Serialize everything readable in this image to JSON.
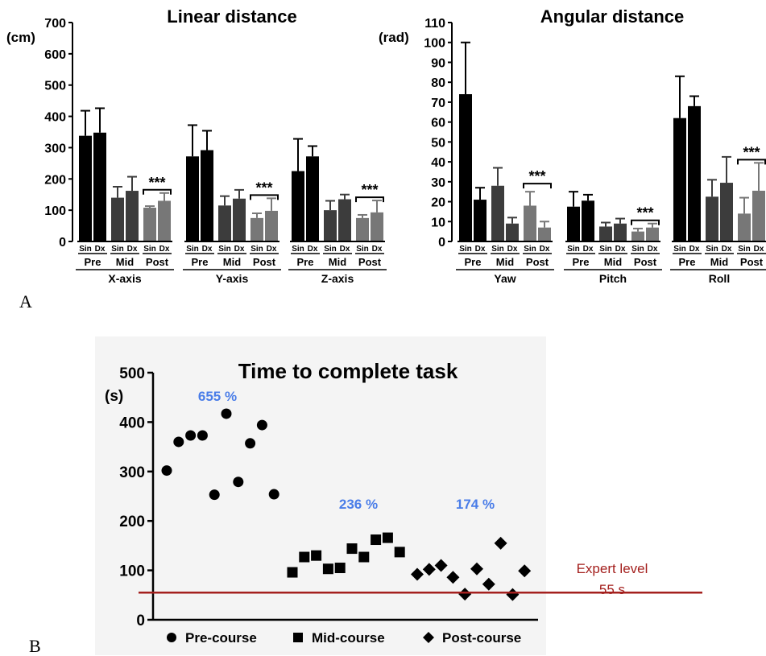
{
  "panel_a_label": "A",
  "panel_b_label": "B",
  "chart_data": [
    {
      "type": "bar",
      "title": "Linear distance",
      "ylabel": "(cm)",
      "ylim": [
        0,
        700
      ],
      "yticks": [
        0,
        100,
        200,
        300,
        400,
        500,
        600,
        700
      ],
      "side_labels": [
        "Sin",
        "Dx"
      ],
      "phases": [
        "Pre",
        "Mid",
        "Post"
      ],
      "groups": [
        {
          "name": "X-axis",
          "values": [
            338,
            348,
            140,
            162,
            108,
            130
          ],
          "errors": [
            80,
            78,
            35,
            45,
            5,
            25
          ],
          "significance": "***"
        },
        {
          "name": "Y-axis",
          "values": [
            272,
            292,
            115,
            137,
            75,
            98
          ],
          "errors": [
            100,
            62,
            30,
            28,
            15,
            40
          ],
          "significance": "***"
        },
        {
          "name": "Z-axis",
          "values": [
            225,
            272,
            100,
            135,
            75,
            93
          ],
          "errors": [
            103,
            33,
            30,
            15,
            10,
            38
          ],
          "significance": "***"
        }
      ],
      "bar_colors": [
        "#000000",
        "#000000",
        "#3c3c3c",
        "#3c3c3c",
        "#777777",
        "#777777"
      ]
    },
    {
      "type": "bar",
      "title": "Angular distance",
      "ylabel": "(rad)",
      "ylim": [
        0,
        110
      ],
      "yticks": [
        0,
        10,
        20,
        30,
        40,
        50,
        60,
        70,
        80,
        90,
        100,
        110
      ],
      "side_labels": [
        "Sin",
        "Dx"
      ],
      "phases": [
        "Pre",
        "Mid",
        "Post"
      ],
      "groups": [
        {
          "name": "Yaw",
          "values": [
            74,
            21,
            28,
            9,
            18,
            7
          ],
          "errors": [
            26,
            6,
            9,
            3,
            7,
            3
          ],
          "significance": "***"
        },
        {
          "name": "Pitch",
          "values": [
            17.5,
            20.5,
            7.5,
            9,
            5,
            7
          ],
          "errors": [
            7.5,
            3,
            2,
            2.5,
            1.5,
            2
          ],
          "significance": "***"
        },
        {
          "name": "Roll",
          "values": [
            62,
            68,
            22.5,
            29.5,
            14,
            25.5
          ],
          "errors": [
            21,
            5,
            8.5,
            13,
            8,
            14
          ],
          "significance": "***"
        }
      ],
      "bar_colors": [
        "#000000",
        "#000000",
        "#3c3c3c",
        "#3c3c3c",
        "#777777",
        "#777777"
      ]
    },
    {
      "type": "scatter",
      "title": "Time to complete task",
      "ylabel": "(s)",
      "ylim": [
        0,
        500
      ],
      "yticks": [
        0,
        100,
        200,
        300,
        400,
        500
      ],
      "series": [
        {
          "name": "Pre-course",
          "marker": "circle",
          "y": [
            302,
            360,
            373,
            373,
            253,
            417,
            279,
            357,
            394,
            254
          ],
          "annotation": "655 %"
        },
        {
          "name": "Mid-course",
          "marker": "square",
          "y": [
            96,
            127,
            130,
            103,
            105,
            144,
            127,
            162,
            166,
            137
          ],
          "annotation": "236 %"
        },
        {
          "name": "Post-course",
          "marker": "diamond",
          "y": [
            92,
            102,
            110,
            86,
            52,
            103,
            72,
            155,
            51,
            99
          ],
          "annotation": "174 %"
        }
      ],
      "reference_line": {
        "y": 55,
        "label_line1": "Expert level",
        "label_line2": "55 s",
        "color": "#a4201e"
      }
    }
  ]
}
